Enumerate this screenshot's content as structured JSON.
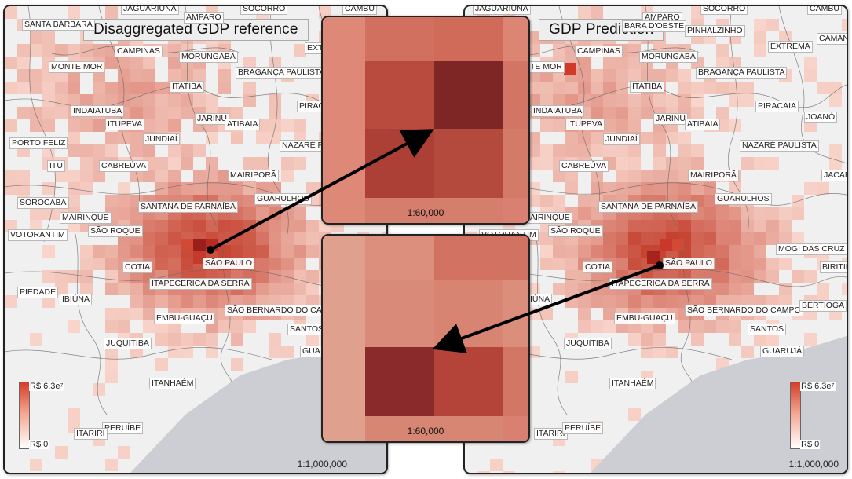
{
  "panels": {
    "left": {
      "title": "Disaggregated GDP reference",
      "scale": "1:1,000,000",
      "legend": {
        "max": "R$ 6.3e⁷",
        "min": "R$ 0"
      },
      "cities": [
        "SANTA BÁRBARA",
        "JAGUARIÚNA",
        "AMPARO",
        "SOCORRO",
        "CAMBU",
        "CAMPINAS",
        "MONTE MOR",
        "MORUNGABA",
        "EXTR",
        "BRAGANÇA PAULISTA",
        "ITATIBA",
        "INDAIATUBA",
        "PIRAC",
        "ITUPEVA",
        "JARINU",
        "ATIBAIA",
        "JUNDIAÍ",
        "PORTO FELIZ",
        "NAZARÉ P",
        "ITU",
        "CABREÚVA",
        "MAIRIPORÃ",
        "SOROCABA",
        "SANTANA DE PARNAÍBA",
        "GUARULHOS",
        "MAIRINQUE",
        "VOTORANTIM",
        "SÃO ROQUE",
        "SÃO PAULO",
        "COTIA",
        "ITAPECERICA DA SERRA",
        "PIEDADE",
        "IBIÚNA",
        "SÃO BERNARDO DO CA",
        "EMBU-GUAÇU",
        "SANTOS",
        "JUQUITIBA",
        "GUA",
        "ITANHAÉM",
        "PERUÍBE",
        "ITARIRI"
      ]
    },
    "right": {
      "title": "GDP Prediction",
      "scale": "1:1,000,000",
      "legend": {
        "max": "R$ 6.3e⁷",
        "min": "R$ 0"
      },
      "cities": [
        "JAGUARIÚNA",
        "AMPARO",
        "SOCORRO",
        "CAMBU",
        "BARA D'OESTE",
        "PINHALZINHO",
        "EXTREMA",
        "CAMAN",
        "CAMPINAS",
        "TE MOR",
        "MORUNGABA",
        "BRAGANÇA PAULISTA",
        "ITATIBA",
        "INDAIATUBA",
        "PIRACAIA",
        "ITUPEVA",
        "JARINU",
        "ATIBAIA",
        "JOANÓ",
        "JUNDIAÍ",
        "NAZARÉ PAULISTA",
        "CABREÚVA",
        "MAIRIPORÃ",
        "JACAR",
        "SANTANA DE PARNAÍBA",
        "GUARULHOS",
        "AIRINQUE",
        "SÃO ROQUE",
        "VOTORANTIM",
        "MOGI DAS CRUZ",
        "COTIA",
        "SÃO PAULO",
        "BIRITIB",
        "ITAPECERICA DA SERRA",
        "IÚNA",
        "SÃO BERNARDO DO CAMPO",
        "BERTIOGA",
        "EMBU-GUAÇU",
        "SANTOS",
        "JUQUITIBA",
        "GUARUJÁ",
        "ITANHAÉM",
        "ITARIRI",
        "PERUÍBE"
      ]
    }
  },
  "insets": {
    "top": {
      "scale": "1:60,000"
    },
    "bottom": {
      "scale": "1:60,000"
    }
  },
  "colors": {
    "ocean": "#cdced3",
    "land": "#f0f0f0",
    "high": "#c42d1f",
    "low": "#fde2d9",
    "border": "#555555"
  }
}
